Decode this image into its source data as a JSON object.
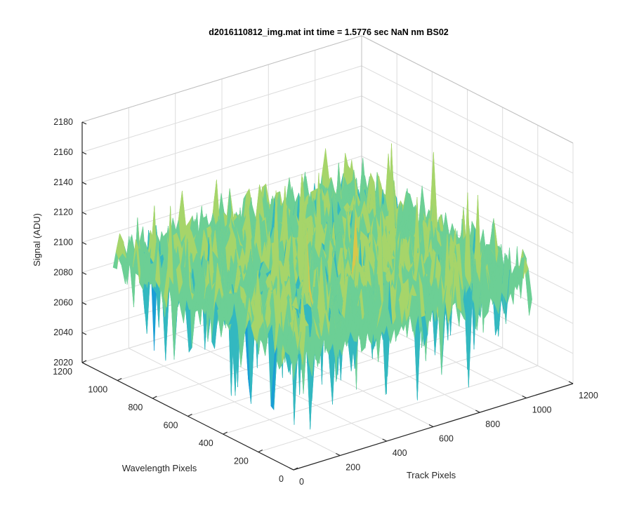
{
  "chart_data": {
    "type": "surface",
    "title": "d2016110812_img.mat int time = 1.5776 sec  NaN nm BS02",
    "xlabel": "Track Pixels",
    "ylabel": "Wavelength Pixels",
    "zlabel": "Signal (ADU)",
    "xlim": [
      0,
      1200
    ],
    "ylim": [
      0,
      1200
    ],
    "zlim": [
      2020,
      2180
    ],
    "x_ticks": [
      "0",
      "200",
      "400",
      "600",
      "800",
      "1000",
      "1200"
    ],
    "y_ticks": [
      "0",
      "200",
      "400",
      "600",
      "800",
      "1000",
      "1200"
    ],
    "z_ticks": [
      "2020",
      "2040",
      "2060",
      "2080",
      "2100",
      "2120",
      "2140",
      "2160",
      "2180"
    ],
    "data_extent": {
      "x": [
        0,
        1024
      ],
      "y": [
        0,
        1024
      ]
    },
    "approx_mean_signal": 2100,
    "approx_noise_range": [
      2030,
      2165
    ],
    "grid": true,
    "colormap": [
      "#0072bd",
      "#1a9ed6",
      "#33b8c0",
      "#6ccf95",
      "#a6d56a",
      "#d8c74a",
      "#edb93a"
    ]
  }
}
